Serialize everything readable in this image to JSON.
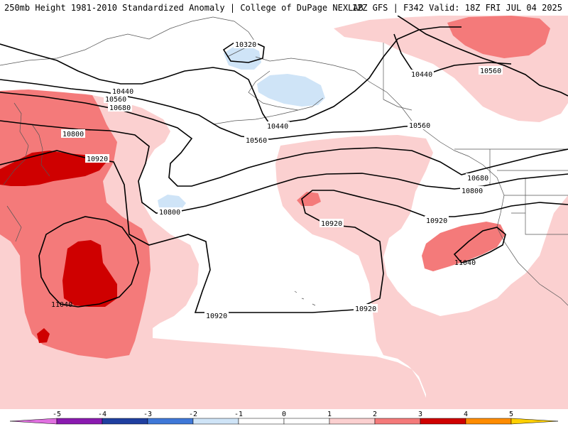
{
  "header": {
    "title_left": "250mb Height 1981-2010 Standardized Anomaly | College of DuPage NEXLAB",
    "title_right": "12Z GFS | F342 Valid: 18Z FRI JUL 04 2025"
  },
  "colors": {
    "neg5": "#e070e0",
    "neg4": "#8a1ab0",
    "neg3": "#1f3fa0",
    "neg2": "#3f78d8",
    "neg1": "#cfe4f7",
    "zero": "#ffffff",
    "pos1": "#fbd0d0",
    "pos2": "#f47a7a",
    "pos3": "#cf0000",
    "pos4": "#ff8c00",
    "pos5": "#ffd000"
  },
  "contours": {
    "c10320": "10320",
    "c10440": "10440",
    "c10560": "10560",
    "c10680": "10680",
    "c10800": "10800",
    "c10920": "10920",
    "c11040": "11040"
  },
  "colorbar": {
    "ticks": [
      "-5",
      "-4",
      "-3",
      "-2",
      "-1",
      "0",
      "1",
      "2",
      "3",
      "4",
      "5"
    ]
  }
}
